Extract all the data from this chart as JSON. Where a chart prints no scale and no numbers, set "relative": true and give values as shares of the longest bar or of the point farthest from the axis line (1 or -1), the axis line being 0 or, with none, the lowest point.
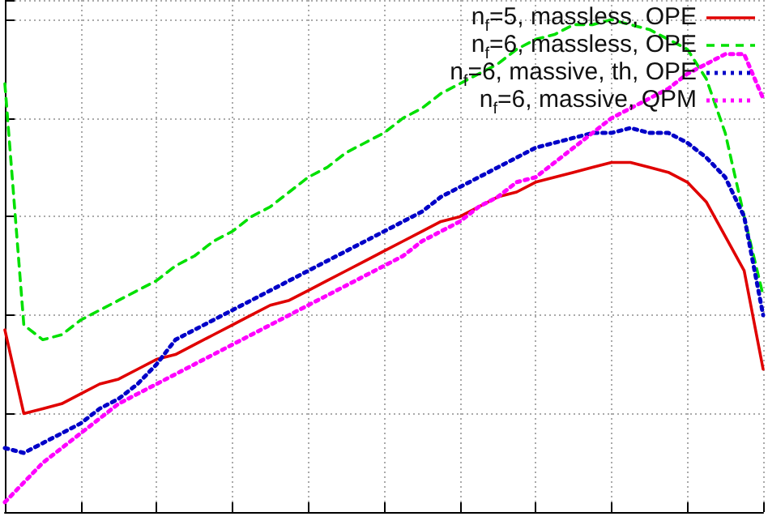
{
  "chart_data": {
    "type": "line",
    "relative": true,
    "grid": true,
    "legend": "top right",
    "marker": "none",
    "categories": [
      null,
      null,
      null,
      null,
      null,
      null,
      null,
      null,
      null,
      null,
      null,
      null,
      null,
      null,
      null,
      null,
      null,
      null,
      null,
      null,
      null,
      null,
      null,
      null,
      null,
      null,
      null,
      null,
      null,
      null,
      null,
      null,
      null,
      null,
      null,
      null,
      null,
      null,
      null,
      null,
      null
    ],
    "series": [
      {
        "name": "n$_{f}$=5, massless, OPE",
        "color": "#e00000",
        "line_style": "solid",
        "values": [
          0.37,
          0.2,
          0.21,
          0.22,
          0.24,
          0.26,
          0.27,
          0.29,
          0.31,
          0.32,
          0.34,
          0.36,
          0.38,
          0.4,
          0.42,
          0.43,
          0.45,
          0.47,
          0.49,
          0.51,
          0.53,
          0.55,
          0.57,
          0.59,
          0.6,
          0.62,
          0.64,
          0.65,
          0.67,
          0.68,
          0.69,
          0.7,
          0.71,
          0.71,
          0.7,
          0.69,
          0.67,
          0.63,
          0.56,
          0.49,
          0.29
        ]
      },
      {
        "name": "n$_{f}$=6, massless, OPE",
        "color": "#00e000",
        "line_style": "dashed",
        "values": [
          0.87,
          0.38,
          0.35,
          0.36,
          0.39,
          0.41,
          0.43,
          0.45,
          0.47,
          0.5,
          0.52,
          0.55,
          0.57,
          0.6,
          0.62,
          0.65,
          0.68,
          0.7,
          0.73,
          0.75,
          0.77,
          0.8,
          0.82,
          0.85,
          0.87,
          0.89,
          0.91,
          0.94,
          0.96,
          0.97,
          0.99,
          0.99,
          1,
          0.99,
          0.98,
          0.96,
          0.94,
          0.88,
          0.77,
          0.6,
          0.44
        ]
      },
      {
        "name": "n$_{f}$=6, massive, th, OPE",
        "color": "#0000c8",
        "line_style": "dotted",
        "values": [
          0.13,
          0.12,
          0.14,
          0.16,
          0.18,
          0.21,
          0.23,
          0.26,
          0.3,
          0.35,
          0.37,
          0.39,
          0.41,
          0.43,
          0.45,
          0.47,
          0.49,
          0.51,
          0.53,
          0.55,
          0.57,
          0.59,
          0.61,
          0.64,
          0.66,
          0.68,
          0.7,
          0.72,
          0.74,
          0.75,
          0.76,
          0.77,
          0.77,
          0.78,
          0.77,
          0.77,
          0.75,
          0.72,
          0.68,
          0.6,
          0.4
        ]
      },
      {
        "name": "n$_{f}$=6, massive, QPM",
        "color": "#ff00ff",
        "line_style": "dotted",
        "values": [
          0.02,
          0.06,
          0.1,
          0.13,
          0.16,
          0.19,
          0.22,
          0.24,
          0.26,
          0.28,
          0.3,
          0.32,
          0.34,
          0.36,
          0.38,
          0.4,
          0.42,
          0.44,
          0.46,
          0.48,
          0.5,
          0.52,
          0.55,
          0.57,
          0.59,
          0.62,
          0.64,
          0.67,
          0.68,
          0.71,
          0.74,
          0.77,
          0.8,
          0.82,
          0.84,
          0.86,
          0.89,
          0.91,
          0.93,
          0.93,
          0.84
        ]
      }
    ]
  }
}
